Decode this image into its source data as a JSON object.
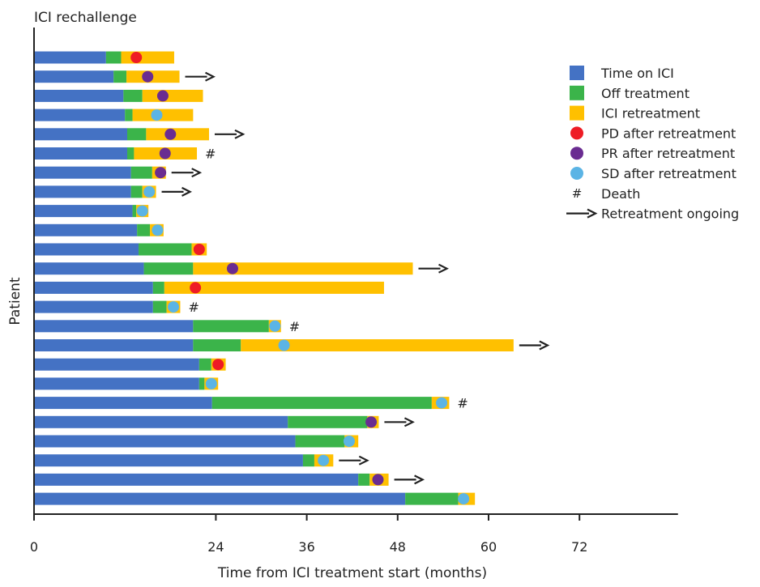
{
  "chart_data": {
    "type": "swimmer",
    "title": "ICI rechallenge",
    "xlabel": "Time from ICI treatment start (months)",
    "ylabel": "Patient",
    "xlim": [
      0,
      85
    ],
    "xticks": [
      0,
      24,
      36,
      48,
      60,
      72
    ],
    "colors": {
      "ici": "#4472C4",
      "off": "#3BB44A",
      "retreat": "#FFC000",
      "pd": "#EE1C25",
      "pr": "#6A2C91",
      "sd": "#5BB4E5",
      "arrow": "#222222"
    },
    "legend": {
      "placement": "right",
      "entries": [
        {
          "key": "ici",
          "shape": "square",
          "label": "Time on ICI"
        },
        {
          "key": "off",
          "shape": "square",
          "label": "Off treatment"
        },
        {
          "key": "retreat",
          "shape": "square",
          "label": "ICI retreatment"
        },
        {
          "key": "pd",
          "shape": "circle",
          "label": "PD after retreatment"
        },
        {
          "key": "pr",
          "shape": "circle",
          "label": "PR after retreatment"
        },
        {
          "key": "sd",
          "shape": "circle",
          "label": "SD after retreatment"
        },
        {
          "key": "death",
          "shape": "hash",
          "label": "Death",
          "symbol": "#"
        },
        {
          "key": "ongoing",
          "shape": "arrow",
          "label": "Retreatment ongoing"
        }
      ]
    },
    "death_symbol": "#",
    "patients": [
      {
        "ici": 9.5,
        "off": 2.0,
        "retreat": 7.0,
        "response": "pd",
        "resp_at": 13.5,
        "death": false,
        "ongoing": false
      },
      {
        "ici": 10.5,
        "off": 1.7,
        "retreat": 7.0,
        "response": "pr",
        "resp_at": 15.0,
        "death": false,
        "ongoing": true
      },
      {
        "ici": 11.8,
        "off": 2.5,
        "retreat": 8.0,
        "response": "pr",
        "resp_at": 17.0,
        "death": false,
        "ongoing": false
      },
      {
        "ici": 12.0,
        "off": 1.0,
        "retreat": 8.0,
        "response": "sd",
        "resp_at": 16.2,
        "death": false,
        "ongoing": false
      },
      {
        "ici": 12.3,
        "off": 2.5,
        "retreat": 8.3,
        "response": "pr",
        "resp_at": 18.0,
        "death": false,
        "ongoing": true
      },
      {
        "ici": 12.3,
        "off": 0.9,
        "retreat": 8.3,
        "response": "pr",
        "resp_at": 17.3,
        "death": true,
        "ongoing": false
      },
      {
        "ici": 12.8,
        "off": 2.8,
        "retreat": 1.8,
        "response": "pr",
        "resp_at": 16.7,
        "death": false,
        "ongoing": true
      },
      {
        "ici": 12.8,
        "off": 1.5,
        "retreat": 1.8,
        "response": "sd",
        "resp_at": 15.2,
        "death": false,
        "ongoing": true
      },
      {
        "ici": 13.0,
        "off": 0.5,
        "retreat": 1.6,
        "response": "sd",
        "resp_at": 14.3,
        "death": false,
        "ongoing": false
      },
      {
        "ici": 13.6,
        "off": 1.7,
        "retreat": 1.8,
        "response": "sd",
        "resp_at": 16.3,
        "death": false,
        "ongoing": false
      },
      {
        "ici": 13.8,
        "off": 7.0,
        "retreat": 2.0,
        "response": "pd",
        "resp_at": 21.8,
        "death": false,
        "ongoing": false
      },
      {
        "ici": 14.5,
        "off": 6.5,
        "retreat": 29.0,
        "response": "pr",
        "resp_at": 26.2,
        "death": false,
        "ongoing": true
      },
      {
        "ici": 15.7,
        "off": 1.5,
        "retreat": 29.0,
        "response": "pd",
        "resp_at": 21.3,
        "death": false,
        "ongoing": false
      },
      {
        "ici": 15.7,
        "off": 1.8,
        "retreat": 1.8,
        "response": "sd",
        "resp_at": 18.4,
        "death": true,
        "ongoing": false
      },
      {
        "ici": 21.0,
        "off": 10.0,
        "retreat": 1.6,
        "response": "sd",
        "resp_at": 31.8,
        "death": true,
        "ongoing": false
      },
      {
        "ici": 21.0,
        "off": 6.3,
        "retreat": 36.0,
        "response": "sd",
        "resp_at": 33.0,
        "death": false,
        "ongoing": true
      },
      {
        "ici": 21.8,
        "off": 1.6,
        "retreat": 1.9,
        "response": "pd",
        "resp_at": 24.3,
        "death": false,
        "ongoing": false
      },
      {
        "ici": 21.8,
        "off": 0.7,
        "retreat": 1.8,
        "response": "sd",
        "resp_at": 23.4,
        "death": false,
        "ongoing": false
      },
      {
        "ici": 23.5,
        "off": 29.0,
        "retreat": 2.3,
        "response": "sd",
        "resp_at": 53.8,
        "death": true,
        "ongoing": false
      },
      {
        "ici": 33.5,
        "off": 10.5,
        "retreat": 1.5,
        "response": "pr",
        "resp_at": 44.5,
        "death": false,
        "ongoing": true
      },
      {
        "ici": 34.5,
        "off": 6.5,
        "retreat": 1.8,
        "response": "sd",
        "resp_at": 41.6,
        "death": false,
        "ongoing": false
      },
      {
        "ici": 35.5,
        "off": 1.5,
        "retreat": 2.5,
        "response": "sd",
        "resp_at": 38.2,
        "death": false,
        "ongoing": true
      },
      {
        "ici": 42.8,
        "off": 1.5,
        "retreat": 2.5,
        "response": "pr",
        "resp_at": 45.4,
        "death": false,
        "ongoing": true
      },
      {
        "ici": 49.0,
        "off": 7.0,
        "retreat": 2.2,
        "response": "sd",
        "resp_at": 56.7,
        "death": false,
        "ongoing": false
      }
    ]
  }
}
